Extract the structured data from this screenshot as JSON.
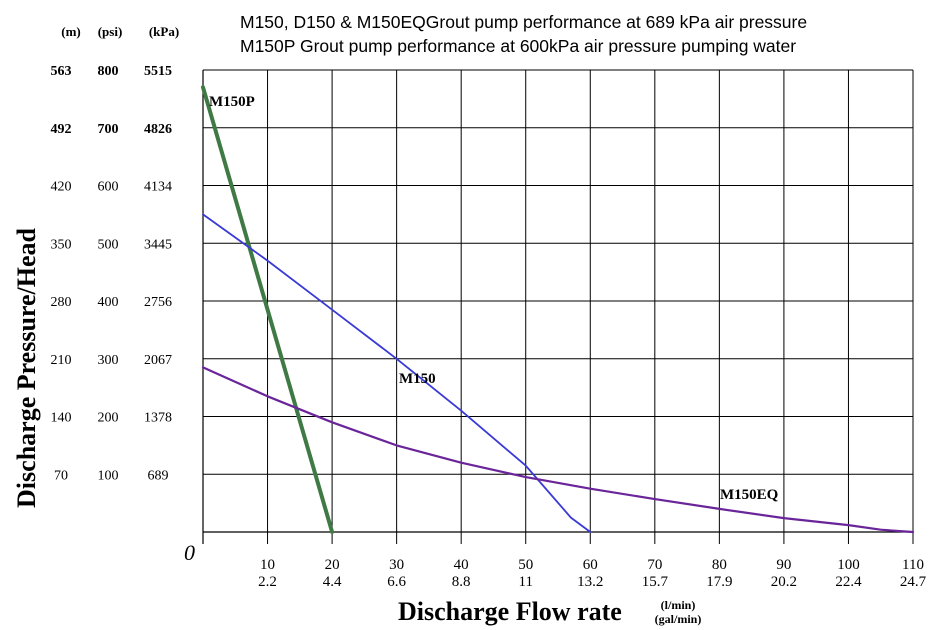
{
  "chart_data": {
    "type": "line",
    "title_lines": [
      "M150, D150 & M150EQGrout pump performance at 689 kPa air pressure",
      "M150P Grout pump performance at 600kPa air pressure pumping water"
    ],
    "xlabel": "Discharge Flow rate",
    "xunit_top": "(l/min)",
    "xunit_bottom": "(gal/min)",
    "ylabel": "Discharge Pressure/Head",
    "y_unit_headers": [
      "(m)",
      "(psi)",
      "(kPa)"
    ],
    "origin_label": "0",
    "xlim": [
      0,
      110
    ],
    "ylim": [
      0,
      800
    ],
    "x_ticks": [
      {
        "lpm": "10",
        "gpm": "2.2"
      },
      {
        "lpm": "20",
        "gpm": "4.4"
      },
      {
        "lpm": "30",
        "gpm": "6.6"
      },
      {
        "lpm": "40",
        "gpm": "8.8"
      },
      {
        "lpm": "50",
        "gpm": "11"
      },
      {
        "lpm": "60",
        "gpm": "13.2"
      },
      {
        "lpm": "70",
        "gpm": "15.7"
      },
      {
        "lpm": "80",
        "gpm": "17.9"
      },
      {
        "lpm": "90",
        "gpm": "20.2"
      },
      {
        "lpm": "100",
        "gpm": "22.4"
      },
      {
        "lpm": "110",
        "gpm": "24.7"
      }
    ],
    "y_ticks": [
      {
        "psi": 100,
        "m": "70",
        "psi_label": "100",
        "kpa": "689"
      },
      {
        "psi": 200,
        "m": "140",
        "psi_label": "200",
        "kpa": "1378"
      },
      {
        "psi": 300,
        "m": "210",
        "psi_label": "300",
        "kpa": "2067"
      },
      {
        "psi": 400,
        "m": "280",
        "psi_label": "400",
        "kpa": "2756"
      },
      {
        "psi": 500,
        "m": "350",
        "psi_label": "500",
        "kpa": "3445"
      },
      {
        "psi": 600,
        "m": "420",
        "psi_label": "600",
        "kpa": "4134"
      },
      {
        "psi": 700,
        "m": "492",
        "psi_label": "700",
        "kpa": "4826"
      },
      {
        "psi": 800,
        "m": "563",
        "psi_label": "800",
        "kpa": "5515"
      }
    ],
    "series": [
      {
        "name": "M150P",
        "color": "#3f7a45",
        "x": [
          0,
          20
        ],
        "y": [
          770,
          0
        ]
      },
      {
        "name": "M150",
        "color": "#3a3ad6",
        "x": [
          0,
          10,
          20,
          30,
          40,
          50,
          57,
          60
        ],
        "y": [
          550,
          470,
          385,
          300,
          210,
          115,
          25,
          0
        ]
      },
      {
        "name": "M150EQ",
        "color": "#6a259a",
        "x": [
          0,
          10,
          20,
          30,
          40,
          50,
          60,
          70,
          80,
          90,
          100,
          105,
          110
        ],
        "y": [
          285,
          235,
          190,
          150,
          120,
          95,
          75,
          57,
          40,
          24,
          12,
          4,
          0
        ]
      }
    ],
    "series_labels": [
      "M150P",
      "M150",
      "M150EQ"
    ],
    "grid": true
  }
}
